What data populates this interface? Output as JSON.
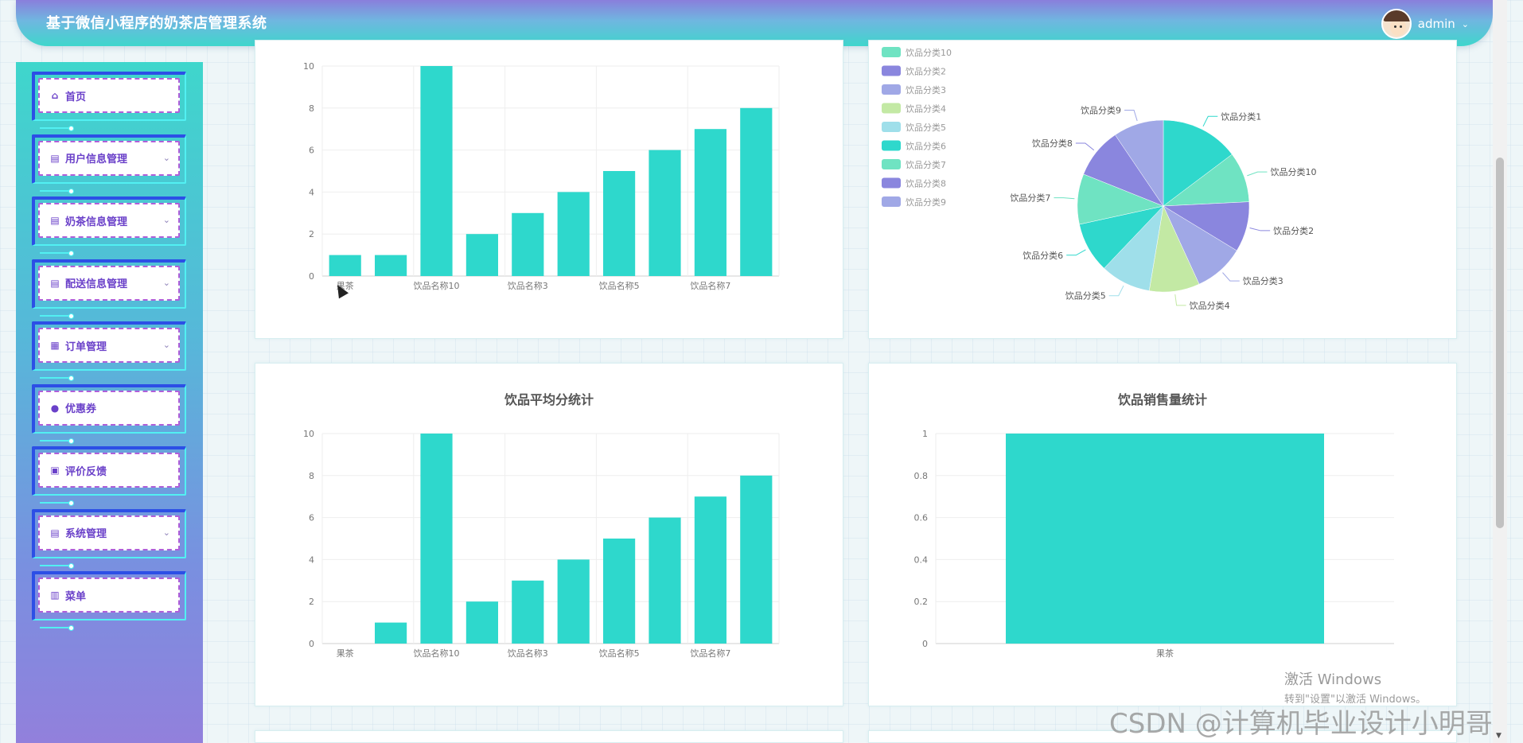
{
  "header": {
    "title": "基于微信小程序的奶茶店管理系统",
    "username": "admin"
  },
  "sidebar": {
    "items": [
      {
        "label": "首页",
        "icon": "home-icon",
        "has_submenu": false
      },
      {
        "label": "用户信息管理",
        "icon": "list-icon",
        "has_submenu": true
      },
      {
        "label": "奶茶信息管理",
        "icon": "list-icon",
        "has_submenu": true
      },
      {
        "label": "配送信息管理",
        "icon": "list-icon",
        "has_submenu": true
      },
      {
        "label": "订单管理",
        "icon": "shop-icon",
        "has_submenu": true
      },
      {
        "label": "优惠券",
        "icon": "drop-icon",
        "has_submenu": false
      },
      {
        "label": "评价反馈",
        "icon": "bag-icon",
        "has_submenu": false
      },
      {
        "label": "系统管理",
        "icon": "list-icon",
        "has_submenu": true
      },
      {
        "label": "菜单",
        "icon": "grid-icon",
        "has_submenu": false
      }
    ]
  },
  "colors": {
    "bar": "#2ed8cc",
    "pie": [
      "#2ed8cc",
      "#6fe3c2",
      "#8a86de",
      "#a0a8e6",
      "#c3e9a4",
      "#9fdfea",
      "#2ed8cc",
      "#6fe3c2",
      "#8a86de",
      "#a0a8e6"
    ]
  },
  "chart_data": [
    {
      "type": "bar",
      "title": "",
      "categories": [
        "果茶",
        "",
        "饮品名称10",
        "",
        "饮品名称3",
        "",
        "饮品名称5",
        "",
        "饮品名称7",
        ""
      ],
      "values": [
        1,
        1,
        10,
        2,
        3,
        4,
        5,
        6,
        7,
        8
      ],
      "yticks": [
        "0",
        "2",
        "4",
        "6",
        "8",
        "10"
      ],
      "ylim": [
        0,
        10
      ]
    },
    {
      "type": "pie",
      "legend": [
        "饮品分类10",
        "饮品分类2",
        "饮品分类3",
        "饮品分类4",
        "饮品分类5",
        "饮品分类6",
        "饮品分类7",
        "饮品分类8",
        "饮品分类9"
      ],
      "slices": [
        {
          "name": "饮品分类1",
          "value": 14
        },
        {
          "name": "饮品分类10",
          "value": 9
        },
        {
          "name": "饮品分类2",
          "value": 9
        },
        {
          "name": "饮品分类3",
          "value": 9
        },
        {
          "name": "饮品分类4",
          "value": 9
        },
        {
          "name": "饮品分类5",
          "value": 9
        },
        {
          "name": "饮品分类6",
          "value": 9
        },
        {
          "name": "饮品分类7",
          "value": 9
        },
        {
          "name": "饮品分类8",
          "value": 9
        },
        {
          "name": "饮品分类9",
          "value": 9
        }
      ]
    },
    {
      "type": "bar",
      "title": "饮品平均分统计",
      "categories": [
        "果茶",
        "",
        "饮品名称10",
        "",
        "饮品名称3",
        "",
        "饮品名称5",
        "",
        "饮品名称7",
        ""
      ],
      "values": [
        0,
        1,
        10,
        2,
        3,
        4,
        5,
        6,
        7,
        8
      ],
      "yticks": [
        "0",
        "2",
        "4",
        "6",
        "8",
        "10"
      ],
      "ylim": [
        0,
        10
      ]
    },
    {
      "type": "bar",
      "title": "饮品销售量统计",
      "categories": [
        "果茶"
      ],
      "values": [
        1
      ],
      "yticks": [
        "0",
        "0.2",
        "0.4",
        "0.6",
        "0.8",
        "1"
      ],
      "ylim": [
        0,
        1
      ]
    }
  ],
  "watermarks": {
    "windows_title": "激活 Windows",
    "windows_sub": "转到\"设置\"以激活 Windows。",
    "csdn": "CSDN @计算机毕业设计小明哥"
  }
}
